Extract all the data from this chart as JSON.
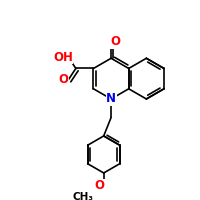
{
  "background_color": "#ffffff",
  "bond_color": "#000000",
  "atom_colors": {
    "O": "#ff0000",
    "N": "#0000ee",
    "C": "#000000"
  },
  "font_size": 8.5,
  "font_size_small": 7.5,
  "fig_size": [
    2.0,
    2.0
  ],
  "dpi": 100,
  "lw": 1.2
}
